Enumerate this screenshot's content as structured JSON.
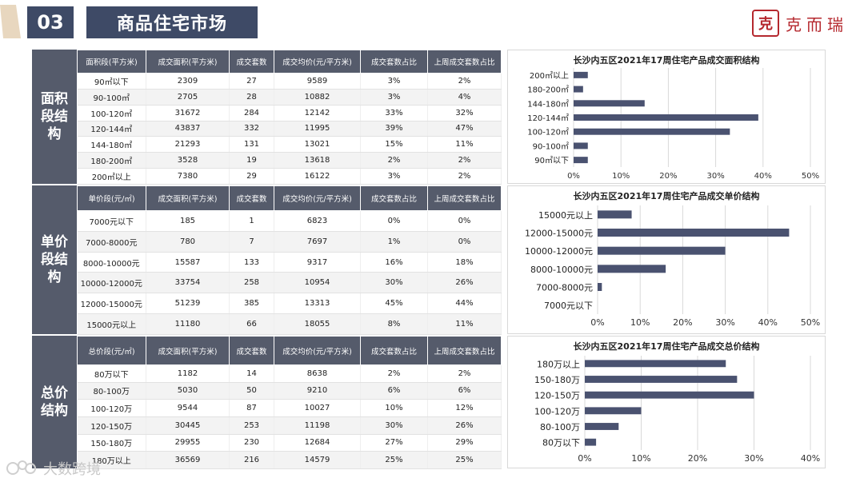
{
  "header": {
    "section_number": "03",
    "section_title": "商品住宅市场",
    "logo_mark": "克",
    "logo_text": "克而瑞"
  },
  "watermark": "大数跨境",
  "sections": [
    {
      "label": "面积段结构",
      "headers": [
        "面积段(平方米)",
        "成交面积(平方米)",
        "成交套数",
        "成交均价(元/平方米)",
        "成交套数占比",
        "上周成交套数占比"
      ],
      "rows": [
        [
          "90㎡以下",
          "2309",
          "27",
          "9589",
          "3%",
          "2%"
        ],
        [
          "90-100㎡",
          "2705",
          "28",
          "10882",
          "3%",
          "4%"
        ],
        [
          "100-120㎡",
          "31672",
          "284",
          "12142",
          "33%",
          "32%"
        ],
        [
          "120-144㎡",
          "43837",
          "332",
          "11995",
          "39%",
          "47%"
        ],
        [
          "144-180㎡",
          "21293",
          "131",
          "13021",
          "15%",
          "11%"
        ],
        [
          "180-200㎡",
          "3528",
          "19",
          "13618",
          "2%",
          "2%"
        ],
        [
          "200㎡以上",
          "7380",
          "29",
          "16122",
          "3%",
          "2%"
        ]
      ]
    },
    {
      "label": "单价段结构",
      "headers": [
        "单价段(元/㎡)",
        "成交面积(平方米)",
        "成交套数",
        "成交均价(元/平方米)",
        "成交套数占比",
        "上周成交套数占比"
      ],
      "rows": [
        [
          "7000元以下",
          "185",
          "1",
          "6823",
          "0%",
          "0%"
        ],
        [
          "7000-8000元",
          "780",
          "7",
          "7697",
          "1%",
          "0%"
        ],
        [
          "8000-10000元",
          "15587",
          "133",
          "9317",
          "16%",
          "18%"
        ],
        [
          "10000-12000元",
          "33754",
          "258",
          "10954",
          "30%",
          "26%"
        ],
        [
          "12000-15000元",
          "51239",
          "385",
          "13313",
          "45%",
          "44%"
        ],
        [
          "15000元以上",
          "11180",
          "66",
          "18055",
          "8%",
          "11%"
        ]
      ]
    },
    {
      "label": "总价结构",
      "headers": [
        "总价段(元/㎡)",
        "成交面积(平方米)",
        "成交套数",
        "成交均价(元/平方米)",
        "成交套数占比",
        "上周成交套数占比"
      ],
      "rows": [
        [
          "80万以下",
          "1182",
          "14",
          "8638",
          "2%",
          "2%"
        ],
        [
          "80-100万",
          "5030",
          "50",
          "9210",
          "6%",
          "6%"
        ],
        [
          "100-120万",
          "9544",
          "87",
          "10027",
          "10%",
          "12%"
        ],
        [
          "120-150万",
          "30445",
          "253",
          "11198",
          "30%",
          "26%"
        ],
        [
          "150-180万",
          "29955",
          "230",
          "12684",
          "27%",
          "29%"
        ],
        [
          "180万以上",
          "36569",
          "216",
          "14579",
          "25%",
          "25%"
        ]
      ]
    }
  ],
  "chart_data": [
    {
      "type": "bar",
      "orientation": "horizontal",
      "title": "长沙内五区2021年17周住宅产品成交面积结构",
      "categories": [
        "200㎡以上",
        "180-200㎡",
        "144-180㎡",
        "120-144㎡",
        "100-120㎡",
        "90-100㎡",
        "90㎡以下"
      ],
      "values": [
        3,
        2,
        15,
        39,
        33,
        3,
        3
      ],
      "xticks": [
        "0%",
        "10%",
        "20%",
        "30%",
        "40%",
        "50%"
      ],
      "xlim": [
        0,
        50
      ],
      "grid": true,
      "bar_color": "#4a5270"
    },
    {
      "type": "bar",
      "orientation": "horizontal",
      "title": "长沙内五区2021年17周住宅产品成交单价结构",
      "categories": [
        "15000元以上",
        "12000-15000元",
        "10000-12000元",
        "8000-10000元",
        "7000-8000元",
        "7000元以下"
      ],
      "values": [
        8,
        45,
        30,
        16,
        1,
        0
      ],
      "xticks": [
        "0%",
        "10%",
        "20%",
        "30%",
        "40%",
        "50%"
      ],
      "xlim": [
        0,
        50
      ],
      "grid": true,
      "bar_color": "#4a5270"
    },
    {
      "type": "bar",
      "orientation": "horizontal",
      "title": "长沙内五区2021年17周住宅产品成交总价结构",
      "categories": [
        "180万以上",
        "150-180万",
        "120-150万",
        "100-120万",
        "80-100万",
        "80万以下"
      ],
      "values": [
        25,
        27,
        30,
        10,
        6,
        2
      ],
      "xticks": [
        "0%",
        "10%",
        "20%",
        "30%",
        "40%"
      ],
      "xlim": [
        0,
        40
      ],
      "grid": true,
      "bar_color": "#4a5270"
    }
  ]
}
